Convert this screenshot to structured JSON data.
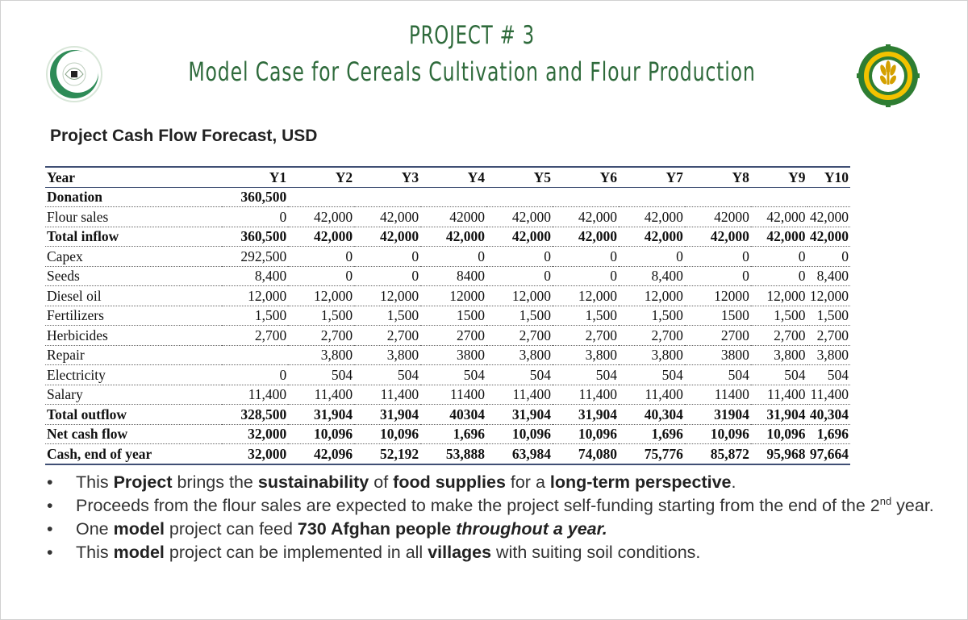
{
  "header": {
    "title_line1": "PROJECT # 3",
    "title_line2": "Model Case for Cereals Cultivation and Flour Production",
    "logo_left": "oic-logo-icon",
    "logo_right": "wheat-emblem-icon"
  },
  "subtitle": "Project Cash Flow Forecast, USD",
  "table": {
    "header": [
      "Year",
      "Y1",
      "Y2",
      "Y3",
      "Y4",
      "Y5",
      "Y6",
      "Y7",
      "Y8",
      "Y9",
      "Y10"
    ],
    "rows": [
      {
        "label": "Donation",
        "bold": true,
        "cells": [
          "360,500",
          "",
          "",
          "",
          "",
          "",
          "",
          "",
          "",
          ""
        ]
      },
      {
        "label": "Flour sales",
        "bold": false,
        "cells": [
          "0",
          "42,000",
          "42,000",
          "42000",
          "42,000",
          "42,000",
          "42,000",
          "42000",
          "42,000",
          "42,000"
        ]
      },
      {
        "label": "Total inflow",
        "bold": true,
        "cells": [
          "360,500",
          "42,000",
          "42,000",
          "42,000",
          "42,000",
          "42,000",
          "42,000",
          "42,000",
          "42,000",
          "42,000"
        ]
      },
      {
        "label": "Capex",
        "bold": false,
        "cells": [
          "292,500",
          "0",
          "0",
          "0",
          "0",
          "0",
          "0",
          "0",
          "0",
          "0"
        ]
      },
      {
        "label": "Seeds",
        "bold": false,
        "cells": [
          "8,400",
          "0",
          "0",
          "8400",
          "0",
          "0",
          "8,400",
          "0",
          "0",
          "8,400"
        ]
      },
      {
        "label": "Diesel oil",
        "bold": false,
        "cells": [
          "12,000",
          "12,000",
          "12,000",
          "12000",
          "12,000",
          "12,000",
          "12,000",
          "12000",
          "12,000",
          "12,000"
        ]
      },
      {
        "label": "Fertilizers",
        "bold": false,
        "cells": [
          "1,500",
          "1,500",
          "1,500",
          "1500",
          "1,500",
          "1,500",
          "1,500",
          "1500",
          "1,500",
          "1,500"
        ]
      },
      {
        "label": "Herbicides",
        "bold": false,
        "cells": [
          "2,700",
          "2,700",
          "2,700",
          "2700",
          "2,700",
          "2,700",
          "2,700",
          "2700",
          "2,700",
          "2,700"
        ]
      },
      {
        "label": "Repair",
        "bold": false,
        "cells": [
          "",
          "3,800",
          "3,800",
          "3800",
          "3,800",
          "3,800",
          "3,800",
          "3800",
          "3,800",
          "3,800"
        ]
      },
      {
        "label": "Electricity",
        "bold": false,
        "cells": [
          "0",
          "504",
          "504",
          "504",
          "504",
          "504",
          "504",
          "504",
          "504",
          "504"
        ]
      },
      {
        "label": "Salary",
        "bold": false,
        "cells": [
          "11,400",
          "11,400",
          "11,400",
          "11400",
          "11,400",
          "11,400",
          "11,400",
          "11400",
          "11,400",
          "11,400"
        ]
      },
      {
        "label": "Total outflow",
        "bold": true,
        "cells": [
          "328,500",
          "31,904",
          "31,904",
          "40304",
          "31,904",
          "31,904",
          "40,304",
          "31904",
          "31,904",
          "40,304"
        ]
      },
      {
        "label": "Net cash flow",
        "bold": true,
        "cells": [
          "32,000",
          "10,096",
          "10,096",
          "1,696",
          "10,096",
          "10,096",
          "1,696",
          "10,096",
          "10,096",
          "1,696"
        ]
      },
      {
        "label": "Cash, end of year",
        "bold": true,
        "cells": [
          "32,000",
          "42,096",
          "52,192",
          "53,888",
          "63,984",
          "74,080",
          "75,776",
          "85,872",
          "95,968",
          "97,664"
        ]
      }
    ]
  },
  "bullets": {
    "b1": {
      "p1": "This ",
      "s1": "Project",
      "p2": " brings the ",
      "s2": "sustainability",
      "p3": " of ",
      "s3": "food supplies",
      "p4": " for a ",
      "s4": "long-term perspective",
      "p5": "."
    },
    "b2": {
      "p1": "Proceeds from the flour sales are expected to make the project self-funding starting from the end of the 2",
      "sup": "nd",
      "p2": " year."
    },
    "b3": {
      "p1": "One ",
      "s1": "model",
      "p2": " project can feed ",
      "s2": "730 Afghan people",
      "s3": "throughout a year."
    },
    "b4": {
      "p1": "This ",
      "s1": "model",
      "p2": " project can be implemented in all ",
      "s2": "villages",
      "p3": " with suiting soil conditions."
    }
  }
}
